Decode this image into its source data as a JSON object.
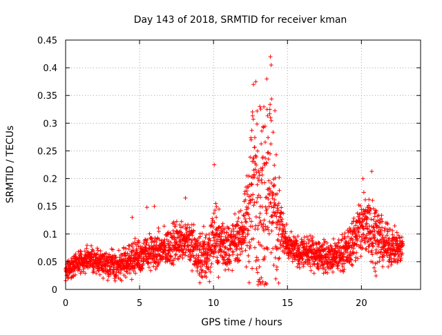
{
  "chart_data": {
    "type": "scatter",
    "title": "Day 143 of 2018, SRMTID for receiver kman",
    "xlabel": "GPS time / hours",
    "ylabel": "SRMTID / TECUs",
    "xlim": [
      0,
      24
    ],
    "ylim": [
      0,
      0.45
    ],
    "xticks": [
      "0",
      "5",
      "10",
      "15",
      "20"
    ],
    "xtick_values": [
      0,
      5,
      10,
      15,
      20
    ],
    "yticks": [
      "0",
      "0.05",
      "0.1",
      "0.15",
      "0.2",
      "0.25",
      "0.3",
      "0.35",
      "0.4",
      "0.45"
    ],
    "ytick_values": [
      0,
      0.05,
      0.1,
      0.15,
      0.2,
      0.25,
      0.3,
      0.35,
      0.4,
      0.45
    ],
    "grid": true,
    "marker": "+",
    "color": "#ff0000",
    "series": [
      {
        "name": "SRMTID",
        "x_range": [
          0,
          22.8
        ],
        "trend": [
          {
            "x": 0,
            "y": 0.03
          },
          {
            "x": 0.5,
            "y": 0.045
          },
          {
            "x": 1.5,
            "y": 0.055
          },
          {
            "x": 2.5,
            "y": 0.05
          },
          {
            "x": 3.5,
            "y": 0.04
          },
          {
            "x": 4.5,
            "y": 0.055
          },
          {
            "x": 5.5,
            "y": 0.065
          },
          {
            "x": 6.5,
            "y": 0.07
          },
          {
            "x": 7.5,
            "y": 0.085
          },
          {
            "x": 8.2,
            "y": 0.095
          },
          {
            "x": 9,
            "y": 0.055
          },
          {
            "x": 9.6,
            "y": 0.065
          },
          {
            "x": 10,
            "y": 0.095
          },
          {
            "x": 10.5,
            "y": 0.085
          },
          {
            "x": 11,
            "y": 0.075
          },
          {
            "x": 11.6,
            "y": 0.09
          },
          {
            "x": 12.2,
            "y": 0.11
          },
          {
            "x": 12.7,
            "y": 0.2
          },
          {
            "x": 13.2,
            "y": 0.16
          },
          {
            "x": 13.8,
            "y": 0.21
          },
          {
            "x": 14.3,
            "y": 0.13
          },
          {
            "x": 15,
            "y": 0.075
          },
          {
            "x": 16,
            "y": 0.065
          },
          {
            "x": 17,
            "y": 0.065
          },
          {
            "x": 18,
            "y": 0.055
          },
          {
            "x": 19,
            "y": 0.07
          },
          {
            "x": 19.8,
            "y": 0.105
          },
          {
            "x": 20.5,
            "y": 0.12
          },
          {
            "x": 21,
            "y": 0.1
          },
          {
            "x": 21.6,
            "y": 0.08
          },
          {
            "x": 22.5,
            "y": 0.075
          }
        ],
        "spread": [
          {
            "x": 0,
            "s": 0.015
          },
          {
            "x": 8,
            "s": 0.03
          },
          {
            "x": 10,
            "s": 0.045
          },
          {
            "x": 12,
            "s": 0.03
          },
          {
            "x": 12.6,
            "s": 0.14
          },
          {
            "x": 14,
            "s": 0.15
          },
          {
            "x": 14.6,
            "s": 0.04
          },
          {
            "x": 15,
            "s": 0.02
          },
          {
            "x": 19,
            "s": 0.025
          },
          {
            "x": 20.5,
            "s": 0.06
          },
          {
            "x": 21.5,
            "s": 0.03
          },
          {
            "x": 22.8,
            "s": 0.02
          }
        ],
        "peaks": [
          {
            "x": 12.7,
            "y": 0.37
          },
          {
            "x": 13.85,
            "y": 0.42
          },
          {
            "x": 13.9,
            "y": 0.405
          },
          {
            "x": 13.6,
            "y": 0.38
          },
          {
            "x": 10.05,
            "y": 0.225
          },
          {
            "x": 20.7,
            "y": 0.213
          },
          {
            "x": 20.1,
            "y": 0.2
          },
          {
            "x": 8.1,
            "y": 0.165
          },
          {
            "x": 6.0,
            "y": 0.15
          },
          {
            "x": 5.5,
            "y": 0.148
          },
          {
            "x": 4.5,
            "y": 0.13
          }
        ]
      }
    ]
  }
}
